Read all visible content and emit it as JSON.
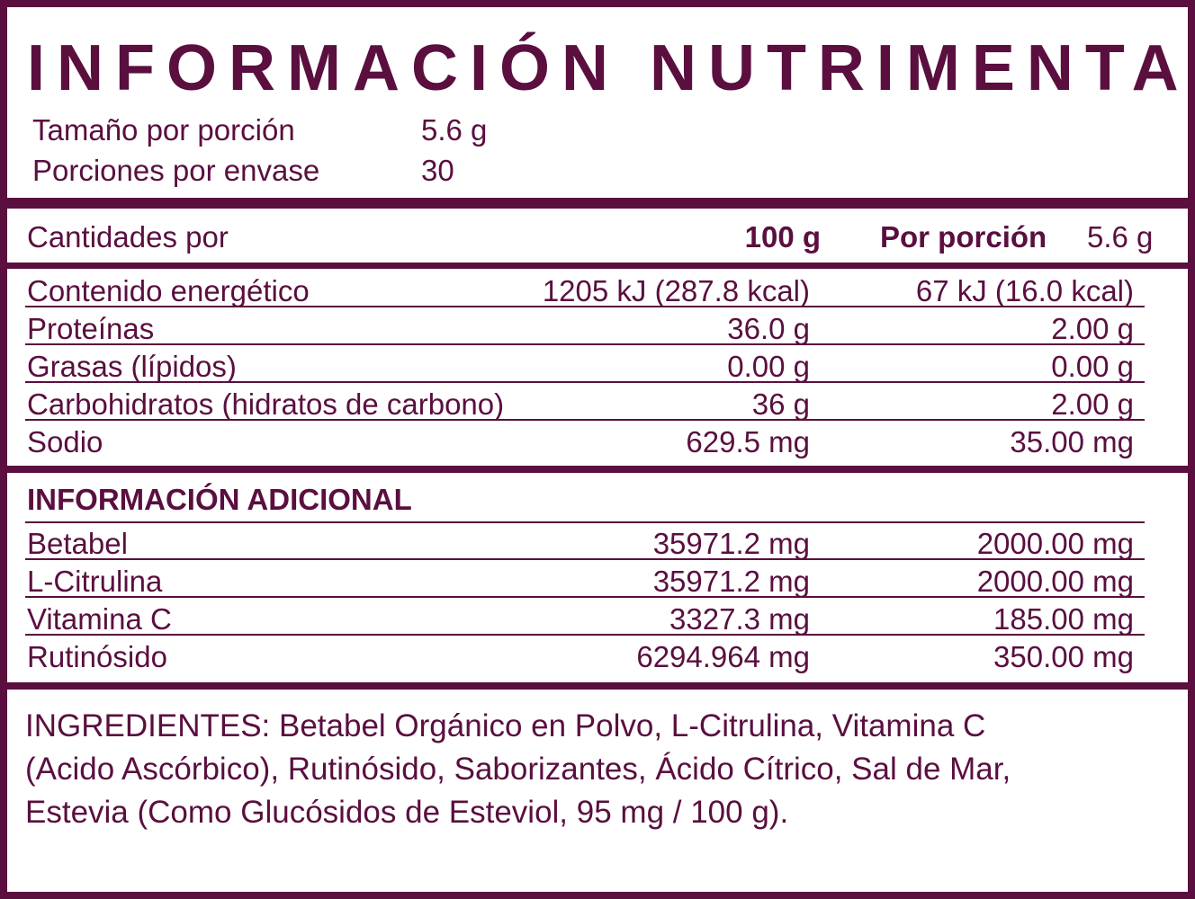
{
  "header": {
    "title": "INFORMACIÓN NUTRIMENTAL"
  },
  "serving": [
    [
      "Tamaño por porción",
      "5.6 g"
    ],
    [
      "Porciones por envase",
      "30"
    ]
  ],
  "table": {
    "header": [
      "Cantidades por",
      "100 g",
      "Por porción",
      "5.6 g"
    ],
    "rows": [
      [
        "Contenido energético",
        "1205 kJ (287.8 kcal)",
        "67 kJ (16.0 kcal)"
      ],
      [
        "Proteínas",
        "36.0 g",
        "2.00 g"
      ],
      [
        "Grasas (lípidos)",
        "0.00 g",
        "0.00 g"
      ],
      [
        "Carbohidratos (hidratos de carbono)",
        "36 g",
        "2.00 g"
      ],
      [
        "Sodio",
        "629.5 mg",
        "35.00 mg"
      ]
    ]
  },
  "additional": {
    "title": "INFORMACIÓN ADICIONAL",
    "rows": [
      [
        "Betabel",
        "35971.2 mg",
        "2000.00 mg"
      ],
      [
        "L-Citrulina",
        "35971.2 mg",
        "2000.00 mg"
      ],
      [
        "Vitamina C",
        "3327.3 mg",
        "185.00 mg"
      ],
      [
        "Rutinósido",
        "6294.964 mg",
        "350.00 mg"
      ]
    ]
  },
  "ingredients": [
    "INGREDIENTES: Betabel Orgánico en Polvo, L-Citrulina, Vitamina C",
    "(Acido Ascórbico), Rutinósido, Saborizantes, Ácido Cítrico, Sal de Mar,",
    "Estevia (Como Glucósidos de Esteviol, 95 mg / 100 g)."
  ]
}
